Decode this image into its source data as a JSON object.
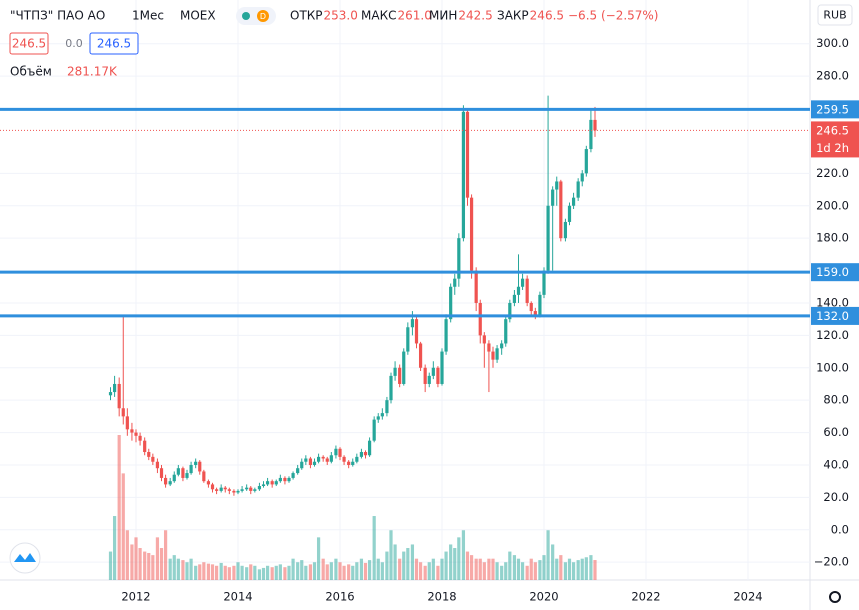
{
  "chart_data": {
    "type": "candlestick",
    "symbol": "\"ЧТПЗ\" ПАО АО",
    "interval": "1Мес",
    "exchange": "MOEX",
    "stats": [
      {
        "label": "ОТКР",
        "value": "253.0"
      },
      {
        "label": "МАКС",
        "value": "261.0"
      },
      {
        "label": "МИН",
        "value": "242.5"
      },
      {
        "label": "ЗАКР",
        "value": "246.5"
      }
    ],
    "change": "−6.5 (−2.57%)",
    "sell": "246.5",
    "spread": "0.0",
    "buy": "246.5",
    "volume_title": "Объём",
    "volume_last": "281.17K",
    "currency": "RUB",
    "up_color": "#26a69a",
    "down_color": "#ef5350",
    "xlim": [
      2009.333,
      2025.216
    ],
    "xticks": [
      2012,
      2014,
      2016,
      2018,
      2020,
      2022,
      2024
    ],
    "ylim": [
      -31,
      327
    ],
    "yticks": [
      {
        "value": -20,
        "label": "−20.0"
      },
      {
        "value": 0,
        "label": "0.0"
      },
      {
        "value": 20,
        "label": "20.0"
      },
      {
        "value": 40,
        "label": "40.0"
      },
      {
        "value": 60,
        "label": "60.0"
      },
      {
        "value": 80,
        "label": "80.0"
      },
      {
        "value": 100,
        "label": "100.0"
      },
      {
        "value": 120,
        "label": "120.0"
      },
      {
        "value": 140,
        "label": "140.0"
      },
      {
        "value": 180,
        "label": "180.0"
      },
      {
        "value": 200,
        "label": "200.0"
      },
      {
        "value": 220,
        "label": "220.0"
      },
      {
        "value": 280,
        "label": "280.0"
      },
      {
        "value": 300,
        "label": "300.0"
      }
    ],
    "grid": true,
    "levels": [
      {
        "value": 259.5,
        "label": "259.5",
        "color": "#2f8fdd"
      },
      {
        "value": 159,
        "label": "159.0",
        "color": "#2f8fdd"
      },
      {
        "value": 132,
        "label": "132.0",
        "color": "#2f8fdd"
      }
    ],
    "last_price": {
      "value": 246.5,
      "label": "246.5",
      "countdown": "1d 2h",
      "color": "#ef5350"
    },
    "x": [
      2011.5,
      2011.58,
      2011.67,
      2011.75,
      2011.83,
      2011.92,
      2012,
      2012.08,
      2012.17,
      2012.25,
      2012.33,
      2012.42,
      2012.5,
      2012.58,
      2012.67,
      2012.75,
      2012.83,
      2012.92,
      2013,
      2013.08,
      2013.17,
      2013.25,
      2013.33,
      2013.42,
      2013.5,
      2013.58,
      2013.67,
      2013.75,
      2013.83,
      2013.92,
      2014,
      2014.08,
      2014.17,
      2014.25,
      2014.33,
      2014.42,
      2014.5,
      2014.58,
      2014.67,
      2014.75,
      2014.83,
      2014.92,
      2015,
      2015.08,
      2015.17,
      2015.25,
      2015.33,
      2015.42,
      2015.5,
      2015.58,
      2015.67,
      2015.75,
      2015.83,
      2015.92,
      2016,
      2016.08,
      2016.17,
      2016.25,
      2016.33,
      2016.42,
      2016.5,
      2016.58,
      2016.67,
      2016.75,
      2016.83,
      2016.92,
      2017,
      2017.08,
      2017.17,
      2017.25,
      2017.33,
      2017.42,
      2017.5,
      2017.58,
      2017.67,
      2017.75,
      2017.83,
      2017.92,
      2018,
      2018.08,
      2018.17,
      2018.25,
      2018.33,
      2018.42,
      2018.5,
      2018.58,
      2018.67,
      2018.75,
      2018.83,
      2018.92,
      2019,
      2019.08,
      2019.17,
      2019.25,
      2019.33,
      2019.42,
      2019.5,
      2019.58,
      2019.67,
      2019.75,
      2019.83,
      2019.92,
      2020,
      2020.08,
      2020.17,
      2020.25,
      2020.33,
      2020.42,
      2020.5,
      2020.58,
      2020.67,
      2020.75,
      2020.83,
      2020.92,
      2021
    ],
    "candles": [
      [
        83,
        88,
        80,
        85
      ],
      [
        85,
        95,
        82,
        90
      ],
      [
        90,
        94,
        70,
        75
      ],
      [
        75,
        132,
        65,
        70
      ],
      [
        70,
        75,
        58,
        62
      ],
      [
        62,
        66,
        55,
        60
      ],
      [
        60,
        62,
        54,
        58
      ],
      [
        58,
        60,
        52,
        55
      ],
      [
        55,
        57,
        46,
        48
      ],
      [
        48,
        50,
        43,
        45
      ],
      [
        45,
        47,
        40,
        42
      ],
      [
        42,
        44,
        35,
        38
      ],
      [
        38,
        40,
        30,
        32
      ],
      [
        32,
        34,
        26,
        28
      ],
      [
        28,
        32,
        27,
        30
      ],
      [
        30,
        36,
        29,
        34
      ],
      [
        34,
        40,
        33,
        38
      ],
      [
        38,
        39,
        30,
        32
      ],
      [
        32,
        37,
        31,
        35
      ],
      [
        35,
        42,
        34,
        40
      ],
      [
        40,
        44,
        38,
        42
      ],
      [
        42,
        43,
        34,
        36
      ],
      [
        36,
        37,
        29,
        30
      ],
      [
        30,
        31,
        26,
        28
      ],
      [
        28,
        29,
        23,
        25
      ],
      [
        25,
        26,
        22,
        24
      ],
      [
        24,
        28,
        23,
        26
      ],
      [
        26,
        27,
        23,
        25
      ],
      [
        25,
        26,
        22,
        24
      ],
      [
        24,
        25,
        21,
        23
      ],
      [
        23,
        25,
        22,
        24
      ],
      [
        24,
        27,
        23,
        25
      ],
      [
        25,
        28,
        24,
        26
      ],
      [
        26,
        27,
        22,
        24
      ],
      [
        24,
        26,
        23,
        25
      ],
      [
        25,
        29,
        24,
        27
      ],
      [
        27,
        30,
        26,
        28
      ],
      [
        28,
        32,
        27,
        30
      ],
      [
        30,
        31,
        26,
        28
      ],
      [
        28,
        31,
        27,
        30
      ],
      [
        30,
        34,
        29,
        32
      ],
      [
        32,
        33,
        28,
        30
      ],
      [
        30,
        33,
        29,
        32
      ],
      [
        32,
        36,
        31,
        35
      ],
      [
        35,
        40,
        34,
        38
      ],
      [
        38,
        44,
        37,
        42
      ],
      [
        42,
        46,
        40,
        44
      ],
      [
        44,
        45,
        38,
        40
      ],
      [
        40,
        44,
        39,
        42
      ],
      [
        42,
        47,
        41,
        45
      ],
      [
        45,
        46,
        42,
        44
      ],
      [
        44,
        45,
        40,
        42
      ],
      [
        42,
        48,
        41,
        46
      ],
      [
        46,
        52,
        44,
        50
      ],
      [
        50,
        51,
        43,
        45
      ],
      [
        45,
        46,
        40,
        42
      ],
      [
        42,
        43,
        38,
        40
      ],
      [
        40,
        44,
        39,
        42
      ],
      [
        42,
        47,
        41,
        45
      ],
      [
        45,
        50,
        44,
        48
      ],
      [
        48,
        49,
        44,
        46
      ],
      [
        46,
        57,
        45,
        55
      ],
      [
        55,
        70,
        54,
        68
      ],
      [
        68,
        72,
        66,
        70
      ],
      [
        70,
        75,
        68,
        72
      ],
      [
        72,
        82,
        70,
        80
      ],
      [
        80,
        97,
        78,
        95
      ],
      [
        95,
        104,
        92,
        100
      ],
      [
        100,
        102,
        88,
        90
      ],
      [
        90,
        112,
        89,
        110
      ],
      [
        110,
        128,
        108,
        125
      ],
      [
        125,
        135,
        120,
        130
      ],
      [
        130,
        132,
        112,
        115
      ],
      [
        115,
        116,
        98,
        100
      ],
      [
        100,
        102,
        85,
        90
      ],
      [
        90,
        97,
        88,
        95
      ],
      [
        95,
        104,
        93,
        100
      ],
      [
        100,
        101,
        88,
        90
      ],
      [
        90,
        112,
        89,
        110
      ],
      [
        110,
        133,
        108,
        130
      ],
      [
        130,
        152,
        128,
        150
      ],
      [
        150,
        158,
        145,
        155
      ],
      [
        155,
        183,
        150,
        180
      ],
      [
        180,
        262,
        178,
        258
      ],
      [
        258,
        260,
        200,
        205
      ],
      [
        205,
        207,
        155,
        160
      ],
      [
        160,
        162,
        135,
        140
      ],
      [
        140,
        142,
        115,
        120
      ],
      [
        120,
        122,
        100,
        115
      ],
      [
        115,
        117,
        85,
        110
      ],
      [
        110,
        113,
        100,
        105
      ],
      [
        105,
        114,
        103,
        112
      ],
      [
        112,
        117,
        108,
        115
      ],
      [
        115,
        132,
        113,
        130
      ],
      [
        130,
        142,
        128,
        140
      ],
      [
        140,
        148,
        138,
        145
      ],
      [
        145,
        170,
        140,
        150
      ],
      [
        150,
        158,
        148,
        155
      ],
      [
        155,
        157,
        138,
        140
      ],
      [
        140,
        141,
        132,
        135
      ],
      [
        135,
        137,
        130,
        132
      ],
      [
        132,
        147,
        131,
        145
      ],
      [
        145,
        162,
        143,
        160
      ],
      [
        160,
        268,
        158,
        200
      ],
      [
        200,
        212,
        160,
        210
      ],
      [
        210,
        218,
        200,
        215
      ],
      [
        215,
        216,
        178,
        180
      ],
      [
        180,
        192,
        178,
        190
      ],
      [
        190,
        202,
        188,
        200
      ],
      [
        200,
        208,
        198,
        205
      ],
      [
        205,
        217,
        203,
        215
      ],
      [
        215,
        222,
        212,
        220
      ],
      [
        220,
        237,
        218,
        235
      ],
      [
        235,
        260,
        233,
        253
      ],
      [
        253,
        261,
        242.5,
        246.5
      ]
    ],
    "volumes": [
      400,
      900,
      2040,
      1500,
      700,
      500,
      600,
      450,
      400,
      380,
      350,
      600,
      450,
      700,
      300,
      350,
      300,
      280,
      250,
      300,
      200,
      220,
      250,
      230,
      220,
      200,
      240,
      200,
      180,
      200,
      250,
      200,
      180,
      220,
      200,
      150,
      170,
      200,
      180,
      200,
      220,
      180,
      200,
      300,
      250,
      280,
      200,
      220,
      250,
      600,
      300,
      220,
      250,
      300,
      250,
      200,
      220,
      200,
      250,
      300,
      240,
      280,
      900,
      300,
      250,
      400,
      700,
      500,
      300,
      400,
      450,
      500,
      300,
      250,
      200,
      250,
      300,
      200,
      300,
      400,
      500,
      450,
      600,
      700,
      400,
      350,
      300,
      300,
      250,
      300,
      300,
      250,
      200,
      250,
      400,
      350,
      300,
      250,
      200,
      300,
      250,
      280,
      350,
      700,
      500,
      300,
      350,
      250,
      300,
      250,
      280,
      300,
      320,
      350,
      281.17
    ]
  }
}
